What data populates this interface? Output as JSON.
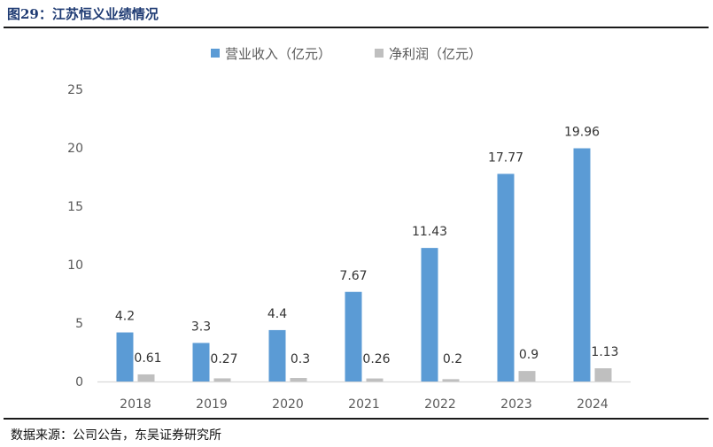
{
  "figure_title": "图29：江苏恒义业绩情况",
  "source_note": "数据来源：公司公告，东吴证券研究所",
  "chart_data": {
    "type": "bar",
    "title": "",
    "xlabel": "",
    "ylabel": "",
    "categories": [
      "2018",
      "2019",
      "2020",
      "2021",
      "2022",
      "2023",
      "2024"
    ],
    "series": [
      {
        "name": "营业收入（亿元）",
        "color": "#5b9bd5",
        "values": [
          4.2,
          3.3,
          4.4,
          7.67,
          11.43,
          17.77,
          19.96
        ],
        "labels": [
          "4.2",
          "3.3",
          "4.4",
          "7.67",
          "11.43",
          "17.77",
          "19.96"
        ]
      },
      {
        "name": "净利润（亿元）",
        "color": "#bfbfbf",
        "values": [
          0.61,
          0.27,
          0.3,
          0.26,
          0.2,
          0.9,
          1.13
        ],
        "labels": [
          "0.61",
          "0.27",
          "0.3",
          "0.26",
          "0.2",
          "0.9",
          "1.13"
        ]
      }
    ],
    "ylim": [
      0,
      25
    ],
    "yticks": [
      "0",
      "5",
      "10",
      "15",
      "20",
      "25"
    ],
    "grid": false,
    "legend": "top"
  }
}
